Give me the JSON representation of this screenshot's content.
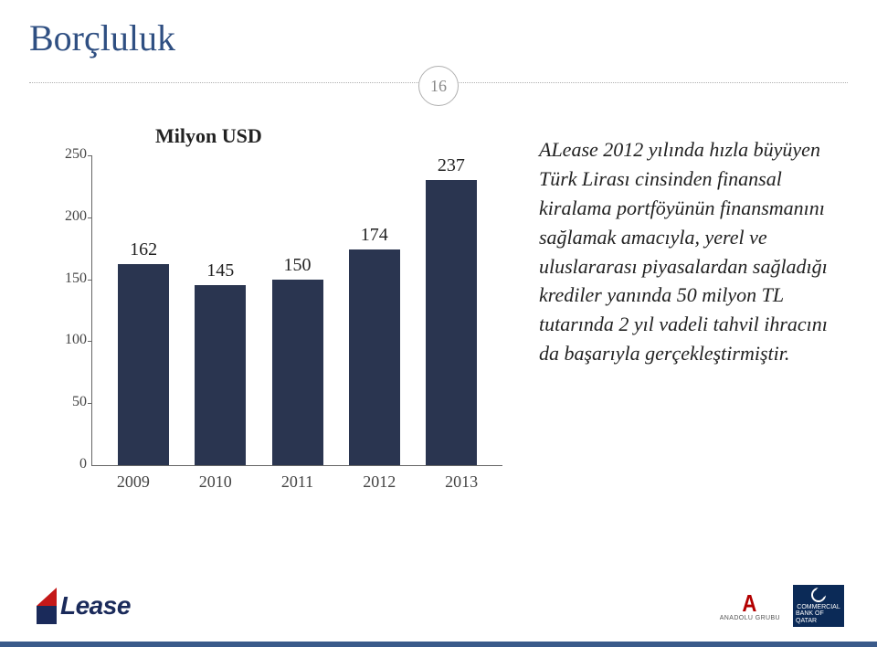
{
  "title": "Borçluluk",
  "page_number": "16",
  "chart": {
    "type": "bar",
    "label": "Milyon USD",
    "categories": [
      "2009",
      "2010",
      "2011",
      "2012",
      "2013"
    ],
    "values": [
      162,
      145,
      150,
      174,
      237
    ],
    "bar_color": "#2a3550",
    "ylim_min": 0,
    "ylim_max": 250,
    "ytick_step": 50,
    "axis_color": "#666666",
    "grid_color": "#888888",
    "value_font_size": 20,
    "tick_font_size": 18,
    "label_font_size": 22
  },
  "description": "ALease 2012 yılında hızla büyüyen Türk Lirası cinsinden finansal kiralama portföyünün finansmanını sağlamak amacıyla, yerel ve uluslararası piyasalardan sağladığı krediler yanında 50 milyon TL tutarında 2 yıl vadeli tahvil ihracını da başarıyla gerçekleştirmiştir.",
  "footer": {
    "left_logo_text": "Lease",
    "anadolu_text": "ANADOLU GRUBU",
    "cbq_line1": "COMMERCIAL",
    "cbq_line2": "BANK OF QATAR"
  },
  "colors": {
    "title": "#2f4f82",
    "accent_red": "#c41818",
    "accent_navy": "#1a2a5a",
    "cbq_bg": "#0b2a57",
    "bottom_border": "#3a5a8a"
  }
}
